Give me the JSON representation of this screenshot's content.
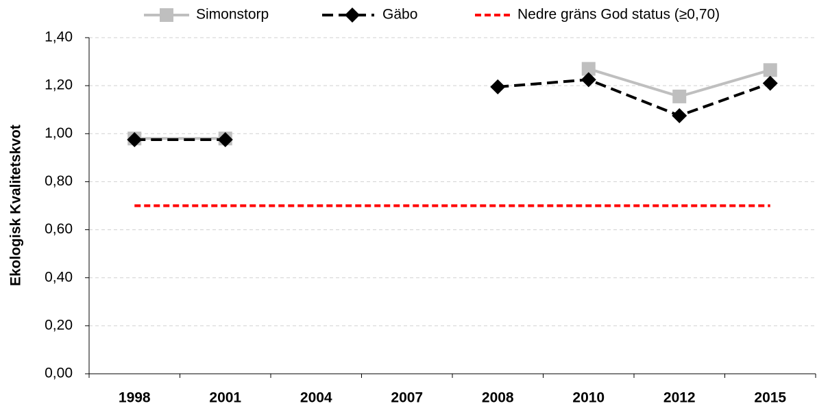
{
  "chart_data": {
    "type": "line",
    "y_label": "Ekologisk Kvalitetskvot",
    "categories": [
      "1998",
      "2001",
      "2004",
      "2007",
      "2008",
      "2010",
      "2012",
      "2015"
    ],
    "series": [
      {
        "name": "Simonstorp",
        "color": "#bfbfbf",
        "dashed": false,
        "marker": "square",
        "values": [
          0.98,
          0.98,
          null,
          null,
          null,
          1.27,
          1.155,
          1.265
        ]
      },
      {
        "name": "Gäbo",
        "color": "#000000",
        "dashed": true,
        "marker": "diamond",
        "values": [
          0.975,
          0.975,
          null,
          null,
          1.195,
          1.225,
          1.075,
          1.21
        ]
      },
      {
        "name": "Nedre gräns God status (≥0,70)",
        "color": "#ff0000",
        "dashed": true,
        "values": [
          0.7,
          0.7,
          0.7,
          0.7,
          0.7,
          0.7,
          0.7,
          0.7
        ]
      }
    ],
    "ylim": [
      0,
      1.4
    ],
    "yticks": [
      {
        "value": 0,
        "label": "0,00"
      },
      {
        "value": 0.2,
        "label": "0,20"
      },
      {
        "value": 0.4,
        "label": "0,40"
      },
      {
        "value": 0.6,
        "label": "0,60"
      },
      {
        "value": 0.8,
        "label": "0,80"
      },
      {
        "value": 1.0,
        "label": "1,00"
      },
      {
        "value": 1.2,
        "label": "1,20"
      },
      {
        "value": 1.4,
        "label": "1,40"
      }
    ],
    "grid": true,
    "legend": "top"
  }
}
